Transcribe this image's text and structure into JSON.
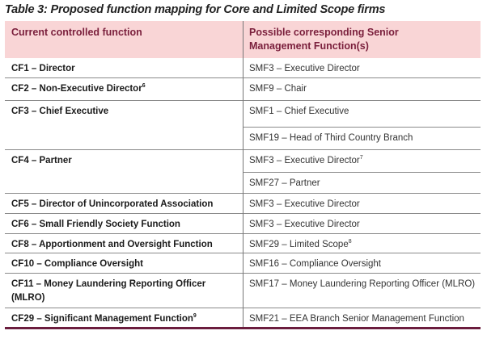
{
  "title": "Table 3: Proposed function mapping for Core and Limited Scope firms",
  "headers": [
    "Current controlled function",
    "Possible corresponding Senior Management Function(s)"
  ],
  "rows": [
    {
      "cf": "CF1 – Director",
      "cf_sup": "",
      "smf": [
        {
          "text": "SMF3 – Executive Director",
          "sup": ""
        }
      ]
    },
    {
      "cf": "CF2 – Non-Executive Director",
      "cf_sup": "6",
      "smf": [
        {
          "text": "SMF9 – Chair",
          "sup": ""
        }
      ]
    },
    {
      "cf": "CF3 – Chief Executive",
      "cf_sup": "",
      "smf": [
        {
          "text": "SMF1 – Chief Executive",
          "sup": ""
        },
        {
          "text": "SMF19 – Head of Third Country Branch",
          "sup": ""
        }
      ]
    },
    {
      "cf": "CF4 – Partner",
      "cf_sup": "",
      "smf": [
        {
          "text": "SMF3 – Executive Director",
          "sup": "7"
        },
        {
          "text": "SMF27 – Partner",
          "sup": ""
        }
      ]
    },
    {
      "cf": "CF5 – Director of Unincorporated Association",
      "cf_sup": "",
      "smf": [
        {
          "text": "SMF3 – Executive Director",
          "sup": ""
        }
      ]
    },
    {
      "cf": "CF6 – Small Friendly Society Function",
      "cf_sup": "",
      "smf": [
        {
          "text": "SMF3 – Executive Director",
          "sup": ""
        }
      ]
    },
    {
      "cf": "CF8 – Apportionment and Oversight Function",
      "cf_sup": "",
      "smf": [
        {
          "text": "SMF29 – Limited Scope",
          "sup": "8"
        }
      ]
    },
    {
      "cf": "CF10 – Compliance Oversight",
      "cf_sup": "",
      "smf": [
        {
          "text": "SMF16 – Compliance Oversight",
          "sup": ""
        }
      ]
    },
    {
      "cf": "CF11 – Money Laundering Reporting Officer (MLRO)",
      "cf_sup": "",
      "smf": [
        {
          "text": "SMF17 – Money Laundering Reporting Officer (MLRO)",
          "sup": ""
        }
      ]
    },
    {
      "cf": "CF29 – Significant Management Function",
      "cf_sup": "9",
      "smf": [
        {
          "text": "SMF21 – EEA Branch Senior Management Function",
          "sup": ""
        }
      ]
    }
  ],
  "colors": {
    "header_bg": "#f9d5d6",
    "header_text": "#7a1f3c",
    "bottom_rule": "#6b1d3e"
  }
}
